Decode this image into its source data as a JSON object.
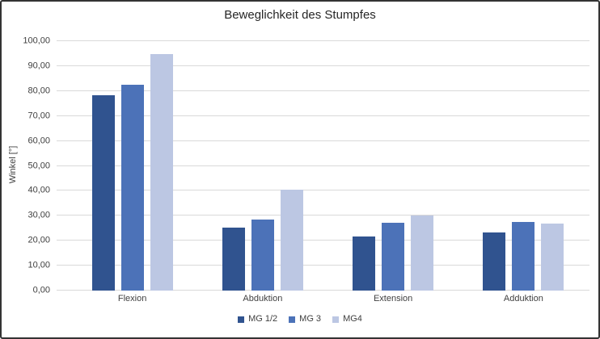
{
  "chart_data": {
    "type": "bar",
    "title": "Beweglichkeit des Stumpfes",
    "xlabel": "",
    "ylabel": "Winkel [°]",
    "ylim": [
      0,
      100
    ],
    "grid": true,
    "legend_position": "bottom-center",
    "categories": [
      "Flexion",
      "Abduktion",
      "Extension",
      "Adduktion"
    ],
    "series": [
      {
        "name": "MG 1/2",
        "color": "#30538F",
        "values": [
          78.4,
          25.4,
          21.8,
          23.4
        ]
      },
      {
        "name": "MG 3",
        "color": "#4C72B8",
        "values": [
          82.5,
          28.6,
          27.2,
          27.4
        ]
      },
      {
        "name": "MG4",
        "color": "#BCC7E3",
        "values": [
          94.7,
          40.6,
          30.1,
          27.0
        ]
      }
    ],
    "yticks": [
      {
        "value": 0,
        "label": "0,00"
      },
      {
        "value": 10,
        "label": "10,00"
      },
      {
        "value": 20,
        "label": "20,00"
      },
      {
        "value": 30,
        "label": "30,00"
      },
      {
        "value": 40,
        "label": "40,00"
      },
      {
        "value": 50,
        "label": "50,00"
      },
      {
        "value": 60,
        "label": "60,00"
      },
      {
        "value": 70,
        "label": "70,00"
      },
      {
        "value": 80,
        "label": "80,00"
      },
      {
        "value": 90,
        "label": "90,00"
      },
      {
        "value": 100,
        "label": "100,00"
      }
    ],
    "colors": {
      "gridline": "#D9D9D9",
      "axis_text": "#404040",
      "title_text": "#262626",
      "figure_border": "#333333"
    }
  }
}
